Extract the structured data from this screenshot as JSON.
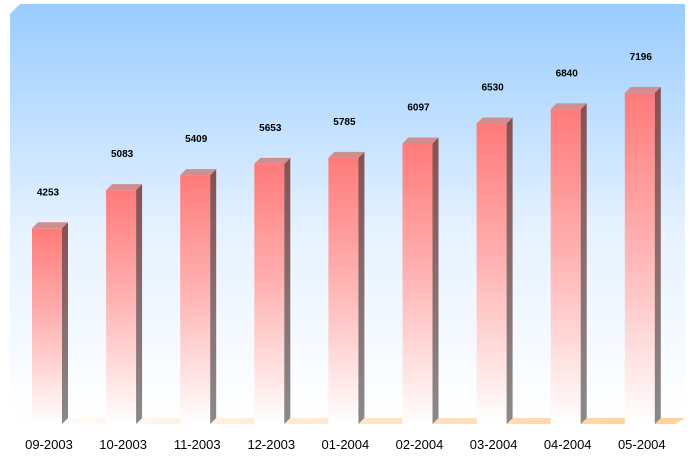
{
  "chart_data": {
    "type": "bar",
    "categories": [
      "09-2003",
      "10-2003",
      "11-2003",
      "12-2003",
      "01-2004",
      "02-2004",
      "03-2004",
      "04-2004",
      "05-2004"
    ],
    "values": [
      4253,
      5083,
      5409,
      5653,
      5785,
      6097,
      6530,
      6840,
      7196
    ],
    "value_labels": [
      "4253",
      "5083",
      "5409",
      "5653",
      "5785",
      "6097",
      "6530",
      "6840",
      "7196"
    ],
    "title": "",
    "xlabel": "",
    "ylabel": "",
    "ylim": [
      0,
      7650
    ],
    "grid": false,
    "legend": "none",
    "colors": {
      "bar_top": "#ff7a7a",
      "bar_bottom": "#ffffff",
      "bar_side": "#8a5a5a",
      "bar_cap": "#cf8f8f",
      "bg_top": "#99ccff",
      "bg_bottom": "#ffffff",
      "floor": "#ffd9a8"
    }
  }
}
